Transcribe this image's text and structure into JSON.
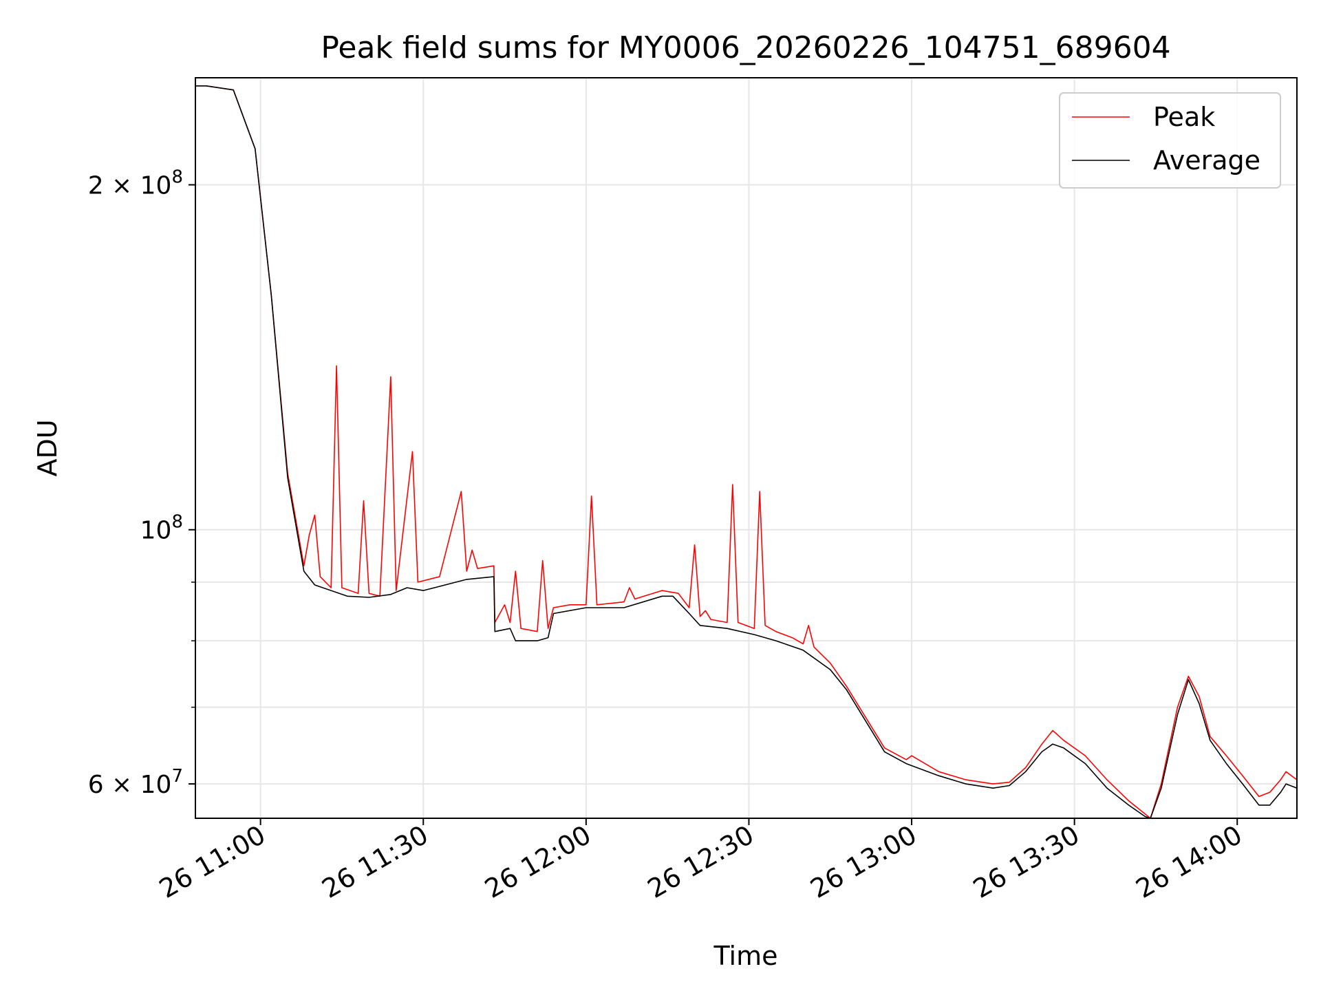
{
  "chart_data": {
    "type": "line",
    "title": "Peak field sums for MY0006_20260226_104751_689604",
    "xlabel": "Time",
    "ylabel": "ADU",
    "x_range": [
      "2026-02-26 10:48",
      "2026-02-26 14:11"
    ],
    "ylim": [
      56000000,
      248000000
    ],
    "yscale": "log",
    "grid": true,
    "legend_position": "top-right",
    "x_ticks": [
      {
        "time": "2026-02-26 11:00",
        "label": "26 11:00"
      },
      {
        "time": "2026-02-26 11:30",
        "label": "26 11:30"
      },
      {
        "time": "2026-02-26 12:00",
        "label": "26 12:00"
      },
      {
        "time": "2026-02-26 12:30",
        "label": "26 12:30"
      },
      {
        "time": "2026-02-26 13:00",
        "label": "26 13:00"
      },
      {
        "time": "2026-02-26 13:30",
        "label": "26 13:30"
      },
      {
        "time": "2026-02-26 14:00",
        "label": "26 14:00"
      }
    ],
    "y_major_ticks": [
      {
        "value": 60000000,
        "base": "6 × 10",
        "exp": "7"
      },
      {
        "value": 100000000,
        "base": "10",
        "exp": "8"
      },
      {
        "value": 200000000,
        "base": "2 × 10",
        "exp": "8"
      }
    ],
    "y_minor_ticks": [
      70000000,
      80000000,
      90000000
    ],
    "series": [
      {
        "name": "Peak",
        "color": "#ff0000",
        "points": [
          [
            "2026-02-26 10:48",
            244000000
          ],
          [
            "2026-02-26 10:50",
            244000000
          ],
          [
            "2026-02-26 10:55",
            242000000
          ],
          [
            "2026-02-26 10:59",
            215000000
          ],
          [
            "2026-02-26 11:02",
            160000000
          ],
          [
            "2026-02-26 11:05",
            112000000
          ],
          [
            "2026-02-26 11:08",
            93000000
          ],
          [
            "2026-02-26 11:09",
            99000000
          ],
          [
            "2026-02-26 11:10",
            103000000
          ],
          [
            "2026-02-26 11:11",
            91000000
          ],
          [
            "2026-02-26 11:13",
            89000000
          ],
          [
            "2026-02-26 11:14",
            139000000
          ],
          [
            "2026-02-26 11:15",
            89000000
          ],
          [
            "2026-02-26 11:18",
            88000000
          ],
          [
            "2026-02-26 11:19",
            106000000
          ],
          [
            "2026-02-26 11:20",
            88000000
          ],
          [
            "2026-02-26 11:22",
            87500000
          ],
          [
            "2026-02-26 11:24",
            136000000
          ],
          [
            "2026-02-26 11:25",
            88500000
          ],
          [
            "2026-02-26 11:28",
            117000000
          ],
          [
            "2026-02-26 11:29",
            90000000
          ],
          [
            "2026-02-26 11:33",
            91000000
          ],
          [
            "2026-02-26 11:37",
            108000000
          ],
          [
            "2026-02-26 11:38",
            92000000
          ],
          [
            "2026-02-26 11:39",
            96000000
          ],
          [
            "2026-02-26 11:40",
            92500000
          ],
          [
            "2026-02-26 11:43",
            93000000
          ],
          [
            "2026-02-26 11:43.2",
            83000000
          ],
          [
            "2026-02-26 11:45",
            86000000
          ],
          [
            "2026-02-26 11:46",
            83000000
          ],
          [
            "2026-02-26 11:47",
            92000000
          ],
          [
            "2026-02-26 11:48",
            82000000
          ],
          [
            "2026-02-26 11:51",
            81500000
          ],
          [
            "2026-02-26 11:52",
            94000000
          ],
          [
            "2026-02-26 11:53",
            82000000
          ],
          [
            "2026-02-26 11:54",
            85500000
          ],
          [
            "2026-02-26 11:57",
            86000000
          ],
          [
            "2026-02-26 12:00",
            86000000
          ],
          [
            "2026-02-26 12:01",
            107000000
          ],
          [
            "2026-02-26 12:02",
            86000000
          ],
          [
            "2026-02-26 12:07",
            86500000
          ],
          [
            "2026-02-26 12:08",
            89000000
          ],
          [
            "2026-02-26 12:09",
            87000000
          ],
          [
            "2026-02-26 12:14",
            88500000
          ],
          [
            "2026-02-26 12:17",
            88000000
          ],
          [
            "2026-02-26 12:19",
            85500000
          ],
          [
            "2026-02-26 12:20",
            97000000
          ],
          [
            "2026-02-26 12:21",
            84000000
          ],
          [
            "2026-02-26 12:22",
            85000000
          ],
          [
            "2026-02-26 12:23",
            83500000
          ],
          [
            "2026-02-26 12:26",
            83000000
          ],
          [
            "2026-02-26 12:27",
            109500000
          ],
          [
            "2026-02-26 12:28",
            83000000
          ],
          [
            "2026-02-26 12:31",
            82000000
          ],
          [
            "2026-02-26 12:32",
            108000000
          ],
          [
            "2026-02-26 12:33",
            82500000
          ],
          [
            "2026-02-26 12:35",
            81500000
          ],
          [
            "2026-02-26 12:38",
            80500000
          ],
          [
            "2026-02-26 12:40",
            79500000
          ],
          [
            "2026-02-26 12:41",
            82500000
          ],
          [
            "2026-02-26 12:42",
            79000000
          ],
          [
            "2026-02-26 12:45",
            76500000
          ],
          [
            "2026-02-26 12:48",
            73000000
          ],
          [
            "2026-02-26 12:52",
            68000000
          ],
          [
            "2026-02-26 12:55",
            64500000
          ],
          [
            "2026-02-26 12:59",
            63000000
          ],
          [
            "2026-02-26 13:00",
            63500000
          ],
          [
            "2026-02-26 13:05",
            61500000
          ],
          [
            "2026-02-26 13:10",
            60500000
          ],
          [
            "2026-02-26 13:15",
            60000000
          ],
          [
            "2026-02-26 13:18",
            60200000
          ],
          [
            "2026-02-26 13:21",
            62000000
          ],
          [
            "2026-02-26 13:24",
            65000000
          ],
          [
            "2026-02-26 13:26",
            66800000
          ],
          [
            "2026-02-26 13:28",
            65500000
          ],
          [
            "2026-02-26 13:32",
            63500000
          ],
          [
            "2026-02-26 13:36",
            60500000
          ],
          [
            "2026-02-26 13:40",
            58000000
          ],
          [
            "2026-02-26 13:43",
            56500000
          ],
          [
            "2026-02-26 13:44",
            56000000
          ],
          [
            "2026-02-26 13:46",
            60000000
          ],
          [
            "2026-02-26 13:49",
            70000000
          ],
          [
            "2026-02-26 13:51",
            74500000
          ],
          [
            "2026-02-26 13:53",
            71500000
          ],
          [
            "2026-02-26 13:55",
            66000000
          ],
          [
            "2026-02-26 13:58",
            63500000
          ],
          [
            "2026-02-26 14:01",
            61000000
          ],
          [
            "2026-02-26 14:04",
            58500000
          ],
          [
            "2026-02-26 14:06",
            59000000
          ],
          [
            "2026-02-26 14:08",
            60500000
          ],
          [
            "2026-02-26 14:09",
            61500000
          ],
          [
            "2026-02-26 14:11",
            60500000
          ]
        ]
      },
      {
        "name": "Average",
        "color": "#000000",
        "points": [
          [
            "2026-02-26 10:48",
            244000000
          ],
          [
            "2026-02-26 10:50",
            244000000
          ],
          [
            "2026-02-26 10:55",
            242000000
          ],
          [
            "2026-02-26 10:59",
            215000000
          ],
          [
            "2026-02-26 11:02",
            160000000
          ],
          [
            "2026-02-26 11:05",
            111000000
          ],
          [
            "2026-02-26 11:08",
            92000000
          ],
          [
            "2026-02-26 11:10",
            89500000
          ],
          [
            "2026-02-26 11:13",
            88500000
          ],
          [
            "2026-02-26 11:16",
            87500000
          ],
          [
            "2026-02-26 11:20",
            87300000
          ],
          [
            "2026-02-26 11:24",
            87800000
          ],
          [
            "2026-02-26 11:27",
            89000000
          ],
          [
            "2026-02-26 11:30",
            88500000
          ],
          [
            "2026-02-26 11:34",
            89500000
          ],
          [
            "2026-02-26 11:38",
            90500000
          ],
          [
            "2026-02-26 11:43",
            91000000
          ],
          [
            "2026-02-26 11:43.2",
            81500000
          ],
          [
            "2026-02-26 11:46",
            82000000
          ],
          [
            "2026-02-26 11:47",
            80000000
          ],
          [
            "2026-02-26 11:51",
            80000000
          ],
          [
            "2026-02-26 11:53",
            80500000
          ],
          [
            "2026-02-26 11:54",
            84500000
          ],
          [
            "2026-02-26 12:00",
            85500000
          ],
          [
            "2026-02-26 12:07",
            85500000
          ],
          [
            "2026-02-26 12:14",
            87500000
          ],
          [
            "2026-02-26 12:16",
            87500000
          ],
          [
            "2026-02-26 12:19",
            84500000
          ],
          [
            "2026-02-26 12:21",
            82500000
          ],
          [
            "2026-02-26 12:26",
            82000000
          ],
          [
            "2026-02-26 12:31",
            81000000
          ],
          [
            "2026-02-26 12:35",
            80000000
          ],
          [
            "2026-02-26 12:40",
            78500000
          ],
          [
            "2026-02-26 12:45",
            75500000
          ],
          [
            "2026-02-26 12:48",
            72500000
          ],
          [
            "2026-02-26 12:52",
            67500000
          ],
          [
            "2026-02-26 12:55",
            64000000
          ],
          [
            "2026-02-26 12:59",
            62500000
          ],
          [
            "2026-02-26 13:05",
            61000000
          ],
          [
            "2026-02-26 13:10",
            60000000
          ],
          [
            "2026-02-26 13:15",
            59500000
          ],
          [
            "2026-02-26 13:18",
            59800000
          ],
          [
            "2026-02-26 13:21",
            61500000
          ],
          [
            "2026-02-26 13:24",
            64000000
          ],
          [
            "2026-02-26 13:26",
            65000000
          ],
          [
            "2026-02-26 13:28",
            64500000
          ],
          [
            "2026-02-26 13:32",
            62500000
          ],
          [
            "2026-02-26 13:36",
            59500000
          ],
          [
            "2026-02-26 13:40",
            57500000
          ],
          [
            "2026-02-26 13:43",
            56200000
          ],
          [
            "2026-02-26 13:44",
            56000000
          ],
          [
            "2026-02-26 13:46",
            59500000
          ],
          [
            "2026-02-26 13:49",
            69000000
          ],
          [
            "2026-02-26 13:51",
            74000000
          ],
          [
            "2026-02-26 13:53",
            70500000
          ],
          [
            "2026-02-26 13:55",
            65500000
          ],
          [
            "2026-02-26 13:58",
            62500000
          ],
          [
            "2026-02-26 14:01",
            60000000
          ],
          [
            "2026-02-26 14:04",
            57500000
          ],
          [
            "2026-02-26 14:06",
            57500000
          ],
          [
            "2026-02-26 14:08",
            59000000
          ],
          [
            "2026-02-26 14:09",
            60000000
          ],
          [
            "2026-02-26 14:11",
            59500000
          ]
        ]
      }
    ]
  }
}
